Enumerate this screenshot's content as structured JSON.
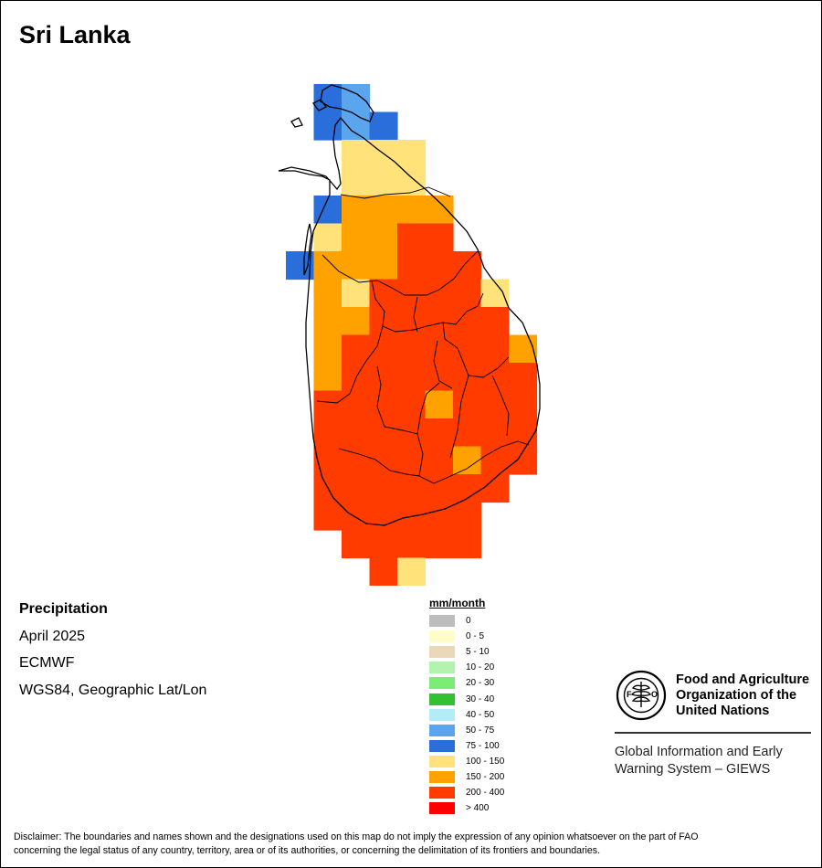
{
  "title": "Sri Lanka",
  "info": {
    "variable": "Precipitation",
    "period": "April 2025",
    "source": "ECMWF",
    "projection": "WGS84, Geographic Lat/Lon"
  },
  "legend": {
    "title": "mm/month",
    "classes": [
      {
        "label": "0",
        "color": "#bdbdbd"
      },
      {
        "label": "0 - 5",
        "color": "#fffdc8"
      },
      {
        "label": "5 - 10",
        "color": "#ead8b8"
      },
      {
        "label": "10 - 20",
        "color": "#b3f3b0"
      },
      {
        "label": "20 - 30",
        "color": "#7ced74"
      },
      {
        "label": "30 - 40",
        "color": "#33c033"
      },
      {
        "label": "40 - 50",
        "color": "#b2ecf7"
      },
      {
        "label": "50 - 75",
        "color": "#5aa5ee"
      },
      {
        "label": "75 - 100",
        "color": "#2a6edc"
      },
      {
        "label": "100 - 150",
        "color": "#ffe37a"
      },
      {
        "label": "150 - 200",
        "color": "#ffa200"
      },
      {
        "label": "200 - 400",
        "color": "#ff3b00"
      },
      {
        "label": "> 400",
        "color": "#ff0000"
      }
    ]
  },
  "organization": {
    "name_line1": "Food and Agriculture",
    "name_line2": "Organization of the",
    "name_line3": "United Nations",
    "system_line1": "Global Information and Early",
    "system_line2": "Warning System – GIEWS"
  },
  "disclaimer_line1": "Disclaimer: The boundaries and names shown and the designations used on this map do not imply the expression of any opinion whatsoever on the part of FAO",
  "disclaimer_line2": "concerning the legal status of any country, territory, area or of its authorities, or concerning the delimitation of its frontiers and boundaries.",
  "grid": {
    "cells": [
      [
        0,
        1,
        "75 - 100"
      ],
      [
        0,
        2,
        "50 - 75"
      ],
      [
        1,
        1,
        "75 - 100"
      ],
      [
        1,
        2,
        "50 - 75"
      ],
      [
        1,
        3,
        "75 - 100"
      ],
      [
        2,
        2,
        "100 - 150"
      ],
      [
        2,
        3,
        "100 - 150"
      ],
      [
        2,
        4,
        "100 - 150"
      ],
      [
        3,
        2,
        "100 - 150"
      ],
      [
        3,
        3,
        "100 - 150"
      ],
      [
        3,
        4,
        "100 - 150"
      ],
      [
        4,
        1,
        "75 - 100"
      ],
      [
        4,
        2,
        "150 - 200"
      ],
      [
        4,
        3,
        "150 - 200"
      ],
      [
        4,
        4,
        "150 - 200"
      ],
      [
        4,
        5,
        "150 - 200"
      ],
      [
        5,
        1,
        "100 - 150"
      ],
      [
        5,
        2,
        "150 - 200"
      ],
      [
        5,
        3,
        "150 - 200"
      ],
      [
        5,
        4,
        "200 - 400"
      ],
      [
        5,
        5,
        "200 - 400"
      ],
      [
        6,
        0,
        "75 - 100"
      ],
      [
        6,
        1,
        "150 - 200"
      ],
      [
        6,
        2,
        "150 - 200"
      ],
      [
        6,
        3,
        "150 - 200"
      ],
      [
        6,
        4,
        "200 - 400"
      ],
      [
        6,
        5,
        "200 - 400"
      ],
      [
        6,
        6,
        "200 - 400"
      ],
      [
        7,
        1,
        "150 - 200"
      ],
      [
        7,
        2,
        "100 - 150"
      ],
      [
        7,
        3,
        "200 - 400"
      ],
      [
        7,
        4,
        "200 - 400"
      ],
      [
        7,
        5,
        "200 - 400"
      ],
      [
        7,
        6,
        "200 - 400"
      ],
      [
        7,
        7,
        "100 - 150"
      ],
      [
        8,
        1,
        "150 - 200"
      ],
      [
        8,
        2,
        "150 - 200"
      ],
      [
        8,
        3,
        "200 - 400"
      ],
      [
        8,
        4,
        "200 - 400"
      ],
      [
        8,
        5,
        "200 - 400"
      ],
      [
        8,
        6,
        "200 - 400"
      ],
      [
        8,
        7,
        "200 - 400"
      ],
      [
        9,
        1,
        "150 - 200"
      ],
      [
        9,
        2,
        "200 - 400"
      ],
      [
        9,
        3,
        "200 - 400"
      ],
      [
        9,
        4,
        "200 - 400"
      ],
      [
        9,
        5,
        "200 - 400"
      ],
      [
        9,
        6,
        "200 - 400"
      ],
      [
        9,
        7,
        "200 - 400"
      ],
      [
        9,
        8,
        "150 - 200"
      ],
      [
        10,
        1,
        "150 - 200"
      ],
      [
        10,
        2,
        "200 - 400"
      ],
      [
        10,
        3,
        "200 - 400"
      ],
      [
        10,
        4,
        "200 - 400"
      ],
      [
        10,
        5,
        "200 - 400"
      ],
      [
        10,
        6,
        "200 - 400"
      ],
      [
        10,
        7,
        "200 - 400"
      ],
      [
        10,
        8,
        "200 - 400"
      ],
      [
        11,
        1,
        "200 - 400"
      ],
      [
        11,
        2,
        "200 - 400"
      ],
      [
        11,
        3,
        "200 - 400"
      ],
      [
        11,
        4,
        "200 - 400"
      ],
      [
        11,
        5,
        "150 - 200"
      ],
      [
        11,
        6,
        "200 - 400"
      ],
      [
        11,
        7,
        "200 - 400"
      ],
      [
        11,
        8,
        "200 - 400"
      ],
      [
        12,
        1,
        "200 - 400"
      ],
      [
        12,
        2,
        "200 - 400"
      ],
      [
        12,
        3,
        "200 - 400"
      ],
      [
        12,
        4,
        "200 - 400"
      ],
      [
        12,
        5,
        "200 - 400"
      ],
      [
        12,
        6,
        "200 - 400"
      ],
      [
        12,
        7,
        "200 - 400"
      ],
      [
        12,
        8,
        "200 - 400"
      ],
      [
        13,
        1,
        "200 - 400"
      ],
      [
        13,
        2,
        "200 - 400"
      ],
      [
        13,
        3,
        "200 - 400"
      ],
      [
        13,
        4,
        "200 - 400"
      ],
      [
        13,
        5,
        "200 - 400"
      ],
      [
        13,
        6,
        "150 - 200"
      ],
      [
        13,
        7,
        "200 - 400"
      ],
      [
        13,
        8,
        "200 - 400"
      ],
      [
        14,
        1,
        "200 - 400"
      ],
      [
        14,
        2,
        "200 - 400"
      ],
      [
        14,
        3,
        "200 - 400"
      ],
      [
        14,
        4,
        "200 - 400"
      ],
      [
        14,
        5,
        "200 - 400"
      ],
      [
        14,
        6,
        "200 - 400"
      ],
      [
        14,
        7,
        "200 - 400"
      ],
      [
        15,
        1,
        "200 - 400"
      ],
      [
        15,
        2,
        "200 - 400"
      ],
      [
        15,
        3,
        "200 - 400"
      ],
      [
        15,
        4,
        "200 - 400"
      ],
      [
        15,
        5,
        "200 - 400"
      ],
      [
        15,
        6,
        "200 - 400"
      ],
      [
        16,
        2,
        "200 - 400"
      ],
      [
        16,
        3,
        "200 - 400"
      ],
      [
        16,
        4,
        "200 - 400"
      ],
      [
        16,
        5,
        "200 - 400"
      ],
      [
        16,
        6,
        "200 - 400"
      ],
      [
        17,
        3,
        "200 - 400"
      ],
      [
        17,
        4,
        "100 - 150"
      ]
    ]
  }
}
